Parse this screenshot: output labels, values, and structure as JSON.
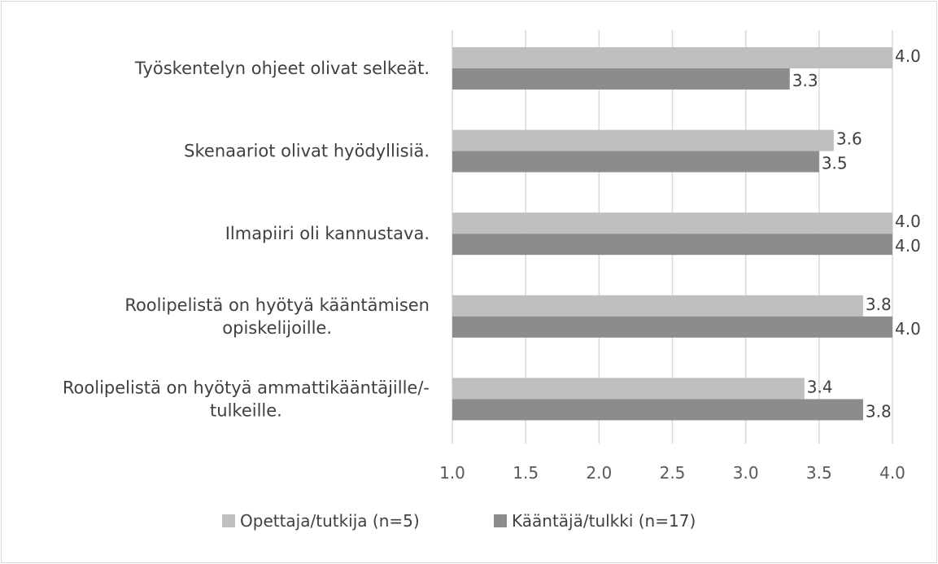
{
  "chart_data": {
    "type": "bar",
    "orientation": "horizontal",
    "categories": [
      [
        "Työskentelyn ohjeet olivat selkeät."
      ],
      [
        "Skenaariot olivat hyödyllisiä."
      ],
      [
        "Ilmapiiri oli kannustava."
      ],
      [
        "Roolipelistä on hyötyä kääntämisen",
        "opiskelijoille."
      ],
      [
        "Roolipelistä on hyötyä ammattikääntäjille/-",
        "tulkeille."
      ]
    ],
    "series": [
      {
        "name": "Opettaja/tutkija (n=5)",
        "color": "#bfbfbf",
        "values": [
          4.0,
          3.6,
          4.0,
          3.8,
          3.4
        ],
        "labels": [
          "4.0",
          "3.6",
          "4.0",
          "3.8",
          "3.4"
        ]
      },
      {
        "name": "Kääntäjä/tulkki (n=17)",
        "color": "#8c8c8c",
        "values": [
          3.3,
          3.5,
          4.0,
          4.0,
          3.8
        ],
        "labels": [
          "3.3",
          "3.5",
          "4.0",
          "4.0",
          "3.8"
        ]
      }
    ],
    "xlim": [
      1.0,
      4.0
    ],
    "xticks": [
      "1.0",
      "1.5",
      "2.0",
      "2.5",
      "3.0",
      "3.5",
      "4.0"
    ],
    "grid": true,
    "legend_position": "bottom"
  }
}
